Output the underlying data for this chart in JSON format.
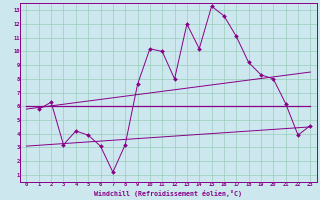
{
  "xlabel": "Windchill (Refroidissement éolien,°C)",
  "bg_color": "#cce8ee",
  "line_color": "#880088",
  "grid_color": "#99ccbb",
  "xlim": [
    -0.5,
    23.5
  ],
  "ylim": [
    0.5,
    13.5
  ],
  "xticks": [
    0,
    1,
    2,
    3,
    4,
    5,
    6,
    7,
    8,
    9,
    10,
    11,
    12,
    13,
    14,
    15,
    16,
    17,
    18,
    19,
    20,
    21,
    22,
    23
  ],
  "yticks": [
    1,
    2,
    3,
    4,
    5,
    6,
    7,
    8,
    9,
    10,
    11,
    12,
    13
  ],
  "line1_x": [
    1,
    2,
    3,
    4,
    5,
    6,
    7,
    8,
    9,
    10,
    11,
    12,
    13,
    14,
    15,
    16,
    17,
    18,
    19,
    20,
    21,
    22,
    23
  ],
  "line1_y": [
    5.8,
    6.3,
    3.2,
    4.2,
    3.9,
    3.1,
    1.2,
    3.2,
    7.6,
    10.2,
    10.0,
    8.0,
    12.0,
    10.2,
    13.3,
    12.6,
    11.1,
    9.2,
    8.3,
    8.0,
    6.2,
    3.9,
    4.6
  ],
  "line2_x": [
    0,
    23
  ],
  "line2_y": [
    3.1,
    4.5
  ],
  "line3_x": [
    0,
    23
  ],
  "line3_y": [
    5.8,
    8.5
  ],
  "line4_x": [
    0,
    23
  ],
  "line4_y": [
    6.0,
    6.0
  ]
}
